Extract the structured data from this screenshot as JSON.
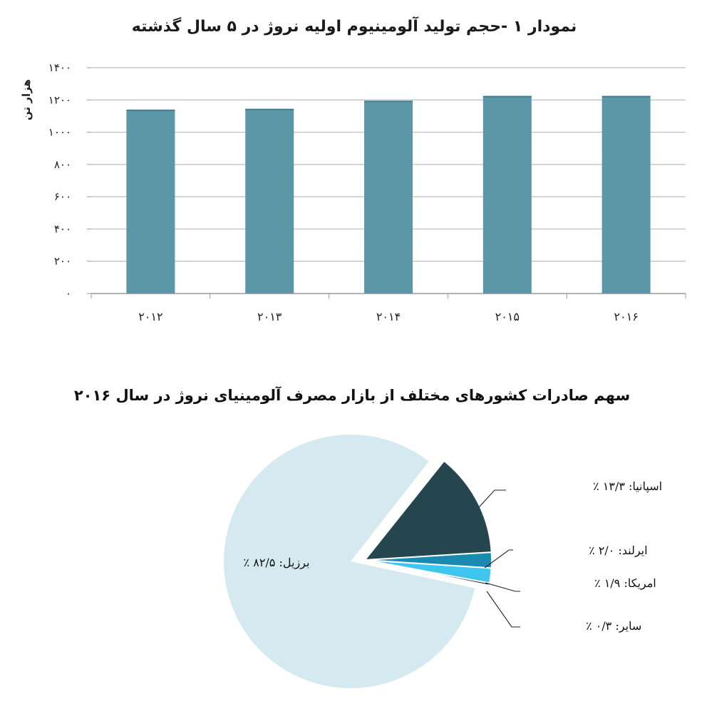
{
  "chart_data": [
    {
      "type": "bar",
      "title": "نمودار ۱ -حجم تولید آلومینیوم اولیه نروژ در ۵ سال گذشته",
      "ylabel": "هزار تن",
      "xlabel": "",
      "categories": [
        "۲۰۱۲",
        "۲۰۱۳",
        "۲۰۱۴",
        "۲۰۱۵",
        "۲۰۱۶"
      ],
      "values": [
        1140,
        1145,
        1195,
        1225,
        1225
      ],
      "ylim": [
        0,
        1400
      ],
      "yticks": [
        0,
        200,
        400,
        600,
        800,
        1000,
        1200,
        1400
      ],
      "ytick_labels": [
        "۰",
        "۲۰۰",
        "۴۰۰",
        "۶۰۰",
        "۸۰۰",
        "۱۰۰۰",
        "۱۲۰۰",
        "۱۴۰۰"
      ],
      "grid": true,
      "color": "#5b97a7"
    },
    {
      "type": "pie",
      "title": "سهم صادرات کشورهای مختلف از بازار مصرف آلومینیای نروژ در سال ۲۰۱۶",
      "slices": [
        {
          "name": "برزیل",
          "value": 82.5,
          "label": "برزیل: ۸۲/۵ ٪",
          "color": "#d5e9f0"
        },
        {
          "name": "اسپانیا",
          "value": 13.3,
          "label": "اسپانیا: ۱۳/۳ ٪",
          "color": "#25464f"
        },
        {
          "name": "ایرلند",
          "value": 2.0,
          "label": "ایرلند: ۲/۰ ٪",
          "color": "#1a8bb0"
        },
        {
          "name": "امریکا",
          "value": 1.9,
          "label": "امریکا: ۱/۹ ٪",
          "color": "#3ec6ee"
        },
        {
          "name": "سایر",
          "value": 0.3,
          "label": "سایر: ۰/۳ ٪",
          "color": "#1a1a1a"
        }
      ]
    }
  ]
}
